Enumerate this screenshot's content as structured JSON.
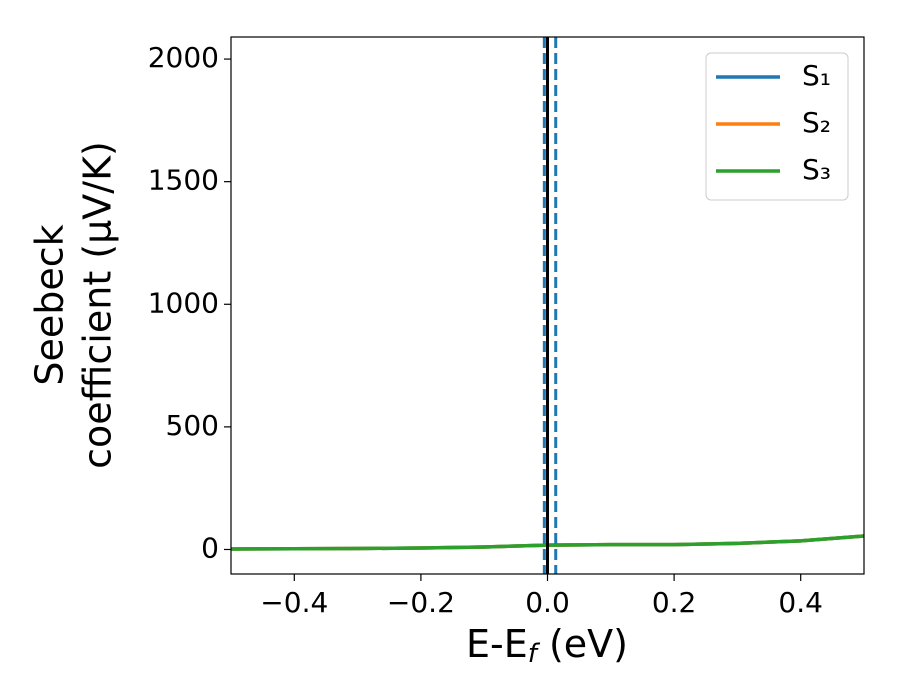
{
  "chart_data": {
    "type": "line",
    "xlabel": {
      "main": "E-E",
      "sub": "f",
      "rest": " (eV)"
    },
    "ylabel": [
      "Seebeck",
      "coefficient  (μV/K)"
    ],
    "x": [
      -0.5,
      -0.4,
      -0.3,
      -0.2,
      -0.1,
      0.0,
      0.1,
      0.2,
      0.3,
      0.4,
      0.5
    ],
    "series": [
      {
        "name": "S₁",
        "color": "#1f77b4",
        "values": [
          2,
          3,
          4,
          6,
          10,
          18,
          20,
          20,
          25,
          35,
          55
        ]
      },
      {
        "name": "S₂",
        "color": "#ff7f0e",
        "values": [
          2,
          3,
          4,
          6,
          10,
          18,
          20,
          20,
          25,
          35,
          55
        ]
      },
      {
        "name": "S₃",
        "color": "#2ca02c",
        "values": [
          2,
          3,
          4,
          6,
          10,
          18,
          20,
          20,
          25,
          35,
          55
        ]
      }
    ],
    "vlines": [
      {
        "x": 0.0,
        "color": "#000000",
        "style": "solid"
      },
      {
        "x": -0.005,
        "color": "#1f77b4",
        "style": "dashed"
      },
      {
        "x": 0.013,
        "color": "#1f77b4",
        "style": "dashed"
      }
    ],
    "xlim": [
      -0.5,
      0.5
    ],
    "ylim": [
      -100,
      2090
    ],
    "xticks": [
      {
        "value": -0.4,
        "label": "−0.4"
      },
      {
        "value": -0.2,
        "label": "−0.2"
      },
      {
        "value": 0.0,
        "label": "0.0"
      },
      {
        "value": 0.2,
        "label": "0.2"
      },
      {
        "value": 0.4,
        "label": "0.4"
      }
    ],
    "yticks": [
      0,
      500,
      1000,
      1500,
      2000
    ],
    "grid": false,
    "legend": "upper right"
  }
}
